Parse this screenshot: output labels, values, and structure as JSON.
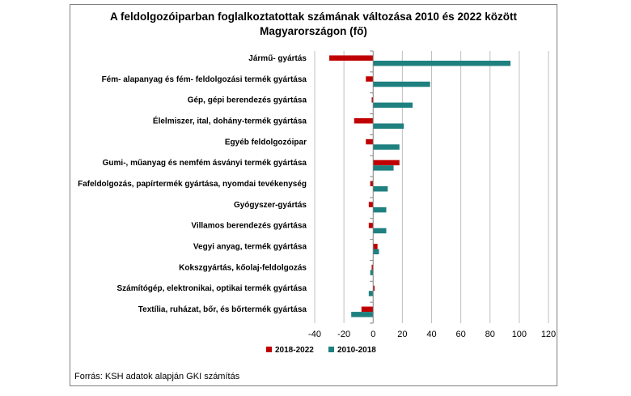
{
  "title_lines": [
    "A feldolgozóiparban foglalkoztatottak számának változása 2010 és 2022 között",
    "Magyarországon (fő)"
  ],
  "source": "Forrás: KSH adatok alapján GKI számítás",
  "colors": {
    "series1": "#c00000",
    "series2": "#1f8080",
    "grid": "#bfbfbf",
    "axis": "#808080"
  },
  "chart_data": {
    "type": "bar",
    "orientation": "horizontal",
    "title": "A feldolgozóiparban foglalkoztatottak számának változása 2010 és 2022 között Magyarországon (fő)",
    "categories": [
      "Jármű- gyártás",
      "Fém- alapanyag és fém- feldolgozási termék gyártása",
      "Gép, gépi berendezés gyártása",
      "Élelmiszer, ital, dohány-termék gyártása",
      "Egyéb feldolgozóipar",
      "Gumi-, műanyag és nemfém ásványi termék gyártása",
      "Fafeldolgozás, papírtermék gyártása, nyomdai tevékenység",
      "Gyógyszer-gyártás",
      "Villamos berendezés gyártása",
      "Vegyi anyag, termék gyártása",
      "Kokszgyártás, kőolaj-feldolgozás",
      "Számítógép, elektronikai, optikai termék gyártása",
      "Textília, ruházat, bőr, és bőrtermék gyártása"
    ],
    "series": [
      {
        "name": "2018-2022",
        "values": [
          -30,
          -5,
          -1,
          -13,
          -5,
          18,
          -2,
          -3,
          -3,
          3,
          -1,
          1,
          -8
        ]
      },
      {
        "name": "2010-2018",
        "values": [
          94,
          39,
          27,
          21,
          18,
          14,
          10,
          9,
          9,
          4,
          -2,
          -3,
          -15
        ]
      }
    ],
    "xlim": [
      -40,
      120
    ],
    "xticks": [
      -40,
      -20,
      0,
      20,
      40,
      60,
      80,
      100,
      120
    ],
    "grid": true,
    "legend_position": "bottom"
  }
}
